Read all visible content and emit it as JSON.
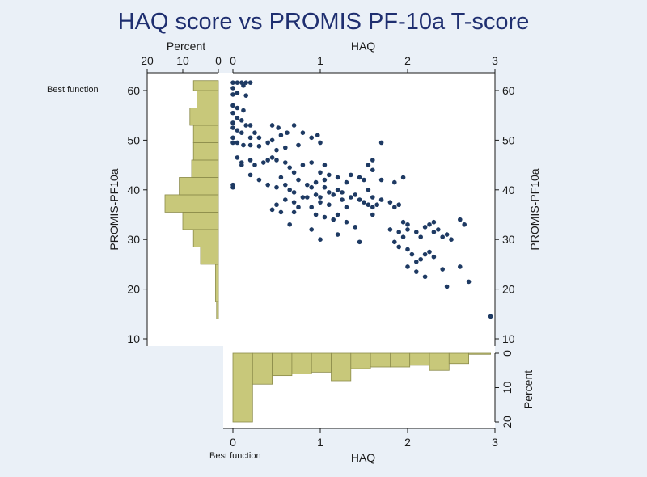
{
  "title": "HAQ score vs PROMIS PF-10a T-score",
  "colors": {
    "background": "#eaf0f7",
    "title": "#1f2f70",
    "points": "#1e3a63",
    "bar_fill": "#c8c87a",
    "bar_stroke": "#8b8b4a"
  },
  "labels": {
    "haq": "HAQ",
    "promis": "PROMIS-PF10a",
    "percent": "Percent",
    "best_function": "Best function"
  },
  "chart_data": [
    {
      "type": "scatter",
      "xlabel": "HAQ",
      "ylabel": "PROMIS-PF10a",
      "xlim": [
        0,
        3
      ],
      "ylim": [
        10,
        62
      ],
      "xticks": [
        0,
        1,
        2,
        3
      ],
      "yticks": [
        10,
        20,
        30,
        40,
        50,
        60
      ],
      "grid": false,
      "points": [
        [
          0.0,
          61.6
        ],
        [
          0.05,
          61.6
        ],
        [
          0.1,
          61.6
        ],
        [
          0.15,
          61.6
        ],
        [
          0.2,
          61.6
        ],
        [
          0.12,
          61.0
        ],
        [
          0.0,
          60.5
        ],
        [
          0.05,
          59.5
        ],
        [
          0.0,
          59.2
        ],
        [
          0.15,
          59.0
        ],
        [
          0.0,
          57.0
        ],
        [
          0.05,
          56.5
        ],
        [
          0.12,
          56.0
        ],
        [
          0.0,
          55.5
        ],
        [
          0.05,
          54.5
        ],
        [
          0.1,
          54.0
        ],
        [
          0.0,
          53.5
        ],
        [
          0.15,
          53.0
        ],
        [
          0.2,
          53.0
        ],
        [
          0.0,
          52.5
        ],
        [
          0.05,
          52.0
        ],
        [
          0.25,
          51.5
        ],
        [
          0.1,
          51.5
        ],
        [
          0.0,
          50.5
        ],
        [
          0.2,
          50.5
        ],
        [
          0.3,
          50.5
        ],
        [
          0.0,
          49.5
        ],
        [
          0.05,
          49.5
        ],
        [
          0.12,
          49.0
        ],
        [
          0.2,
          49.0
        ],
        [
          0.3,
          48.8
        ],
        [
          0.45,
          53.0
        ],
        [
          0.52,
          52.5
        ],
        [
          0.62,
          51.5
        ],
        [
          0.55,
          51.0
        ],
        [
          0.45,
          50.0
        ],
        [
          0.4,
          49.5
        ],
        [
          0.7,
          53.0
        ],
        [
          0.8,
          51.5
        ],
        [
          0.9,
          50.5
        ],
        [
          0.75,
          49.0
        ],
        [
          0.97,
          51.0
        ],
        [
          1.0,
          49.5
        ],
        [
          0.6,
          48.5
        ],
        [
          0.5,
          48.0
        ],
        [
          0.05,
          46.5
        ],
        [
          0.1,
          45.5
        ],
        [
          0.1,
          45.0
        ],
        [
          0.2,
          46.0
        ],
        [
          0.25,
          45.0
        ],
        [
          0.35,
          45.5
        ],
        [
          0.4,
          46.0
        ],
        [
          0.45,
          46.5
        ],
        [
          0.5,
          46.0
        ],
        [
          0.6,
          45.5
        ],
        [
          0.65,
          44.5
        ],
        [
          0.7,
          43.5
        ],
        [
          0.8,
          45.0
        ],
        [
          0.9,
          45.5
        ],
        [
          1.05,
          45.0
        ],
        [
          1.0,
          43.5
        ],
        [
          1.05,
          42.0
        ],
        [
          1.1,
          43.0
        ],
        [
          1.2,
          42.5
        ],
        [
          1.3,
          41.5
        ],
        [
          0.0,
          41.0
        ],
        [
          0.0,
          40.5
        ],
        [
          0.2,
          43.0
        ],
        [
          0.3,
          42.0
        ],
        [
          0.4,
          41.0
        ],
        [
          0.5,
          40.5
        ],
        [
          0.55,
          42.5
        ],
        [
          0.6,
          41.0
        ],
        [
          0.65,
          40.0
        ],
        [
          0.7,
          39.5
        ],
        [
          0.75,
          42.0
        ],
        [
          0.85,
          41.0
        ],
        [
          0.9,
          40.5
        ],
        [
          0.95,
          41.5
        ],
        [
          0.8,
          38.5
        ],
        [
          0.85,
          38.5
        ],
        [
          0.6,
          38.0
        ],
        [
          0.5,
          37.0
        ],
        [
          0.45,
          36.0
        ],
        [
          0.55,
          35.5
        ],
        [
          0.7,
          37.5
        ],
        [
          0.75,
          36.5
        ],
        [
          0.7,
          35.5
        ],
        [
          0.65,
          33.0
        ],
        [
          0.9,
          36.5
        ],
        [
          0.95,
          35.0
        ],
        [
          1.0,
          37.5
        ],
        [
          1.0,
          38.5
        ],
        [
          1.1,
          37.0
        ],
        [
          1.15,
          39.0
        ],
        [
          1.25,
          38.0
        ],
        [
          1.3,
          36.5
        ],
        [
          1.35,
          38.5
        ],
        [
          1.4,
          39.0
        ],
        [
          1.45,
          38.0
        ],
        [
          1.5,
          37.5
        ],
        [
          1.55,
          37.0
        ],
        [
          1.6,
          36.5
        ],
        [
          1.65,
          37.0
        ],
        [
          1.7,
          38.0
        ],
        [
          1.8,
          37.5
        ],
        [
          1.85,
          36.5
        ],
        [
          1.9,
          37.0
        ],
        [
          1.6,
          38.5
        ],
        [
          1.55,
          40.0
        ],
        [
          1.5,
          42.0
        ],
        [
          1.35,
          43.0
        ],
        [
          1.45,
          42.5
        ],
        [
          1.6,
          44.0
        ],
        [
          1.7,
          42.0
        ],
        [
          1.85,
          41.5
        ],
        [
          1.95,
          42.5
        ],
        [
          1.55,
          45.0
        ],
        [
          1.6,
          46.0
        ],
        [
          1.7,
          49.5
        ],
        [
          1.05,
          34.5
        ],
        [
          1.15,
          34.0
        ],
        [
          1.2,
          35.0
        ],
        [
          1.3,
          33.5
        ],
        [
          1.4,
          32.5
        ],
        [
          1.45,
          29.5
        ],
        [
          0.9,
          32.0
        ],
        [
          1.0,
          30.0
        ],
        [
          1.2,
          31.0
        ],
        [
          1.6,
          35.0
        ],
        [
          1.8,
          32.0
        ],
        [
          1.9,
          31.5
        ],
        [
          1.95,
          30.5
        ],
        [
          2.0,
          33.0
        ],
        [
          2.1,
          31.5
        ],
        [
          1.85,
          29.5
        ],
        [
          1.9,
          28.5
        ],
        [
          2.0,
          28.0
        ],
        [
          2.05,
          27.0
        ],
        [
          2.1,
          25.5
        ],
        [
          2.15,
          26.0
        ],
        [
          2.2,
          27.0
        ],
        [
          2.25,
          27.5
        ],
        [
          2.3,
          26.5
        ],
        [
          2.15,
          30.5
        ],
        [
          2.3,
          31.5
        ],
        [
          2.35,
          32.0
        ],
        [
          2.4,
          30.5
        ],
        [
          2.45,
          31.0
        ],
        [
          2.5,
          30.0
        ],
        [
          2.2,
          32.5
        ],
        [
          2.25,
          33.0
        ],
        [
          2.3,
          33.5
        ],
        [
          2.0,
          32.0
        ],
        [
          1.95,
          33.5
        ],
        [
          2.0,
          24.5
        ],
        [
          2.1,
          23.5
        ],
        [
          2.2,
          22.5
        ],
        [
          2.4,
          24.0
        ],
        [
          2.45,
          20.5
        ],
        [
          2.6,
          24.5
        ],
        [
          2.6,
          34.0
        ],
        [
          2.65,
          33.0
        ],
        [
          2.7,
          21.5
        ],
        [
          2.95,
          14.5
        ],
        [
          1.05,
          40.5
        ],
        [
          1.1,
          39.5
        ],
        [
          0.95,
          39.0
        ],
        [
          1.2,
          40.0
        ],
        [
          1.25,
          39.5
        ]
      ]
    },
    {
      "type": "bar",
      "orientation": "horizontal",
      "xlabel": "Percent",
      "ylabel": "PROMIS-PF10a",
      "xlim": [
        0,
        20
      ],
      "xticks": [
        20,
        10,
        0
      ],
      "ylim": [
        10,
        62
      ],
      "bins": [
        {
          "y0": 14.0,
          "y1": 17.5,
          "value": 0.5
        },
        {
          "y0": 17.5,
          "y1": 25.0,
          "value": 0.8
        },
        {
          "y0": 25.0,
          "y1": 28.5,
          "value": 5.0
        },
        {
          "y0": 28.5,
          "y1": 32.0,
          "value": 7.0
        },
        {
          "y0": 32.0,
          "y1": 35.5,
          "value": 10.0
        },
        {
          "y0": 35.5,
          "y1": 39.0,
          "value": 15.0
        },
        {
          "y0": 39.0,
          "y1": 42.5,
          "value": 11.0
        },
        {
          "y0": 42.5,
          "y1": 46.0,
          "value": 7.5
        },
        {
          "y0": 46.0,
          "y1": 49.5,
          "value": 7.0
        },
        {
          "y0": 49.5,
          "y1": 53.0,
          "value": 7.0
        },
        {
          "y0": 53.0,
          "y1": 56.5,
          "value": 8.0
        },
        {
          "y0": 56.5,
          "y1": 60.0,
          "value": 6.0
        },
        {
          "y0": 60.0,
          "y1": 62.0,
          "value": 7.0
        }
      ]
    },
    {
      "type": "bar",
      "orientation": "vertical",
      "xlabel": "HAQ",
      "ylabel": "Percent",
      "ylim": [
        0,
        20
      ],
      "yticks": [
        0,
        10,
        20
      ],
      "xlim": [
        0,
        3
      ],
      "bins": [
        {
          "x0": 0.0,
          "x1": 0.225,
          "value": 20.0
        },
        {
          "x0": 0.225,
          "x1": 0.45,
          "value": 9.0
        },
        {
          "x0": 0.45,
          "x1": 0.675,
          "value": 6.5
        },
        {
          "x0": 0.675,
          "x1": 0.9,
          "value": 6.0
        },
        {
          "x0": 0.9,
          "x1": 1.125,
          "value": 5.5
        },
        {
          "x0": 1.125,
          "x1": 1.35,
          "value": 8.0
        },
        {
          "x0": 1.35,
          "x1": 1.575,
          "value": 4.5
        },
        {
          "x0": 1.575,
          "x1": 1.8,
          "value": 4.0
        },
        {
          "x0": 1.8,
          "x1": 2.025,
          "value": 4.0
        },
        {
          "x0": 2.025,
          "x1": 2.25,
          "value": 3.5
        },
        {
          "x0": 2.25,
          "x1": 2.475,
          "value": 5.0
        },
        {
          "x0": 2.475,
          "x1": 2.7,
          "value": 3.0
        },
        {
          "x0": 2.7,
          "x1": 2.95,
          "value": 0.3
        }
      ]
    }
  ]
}
